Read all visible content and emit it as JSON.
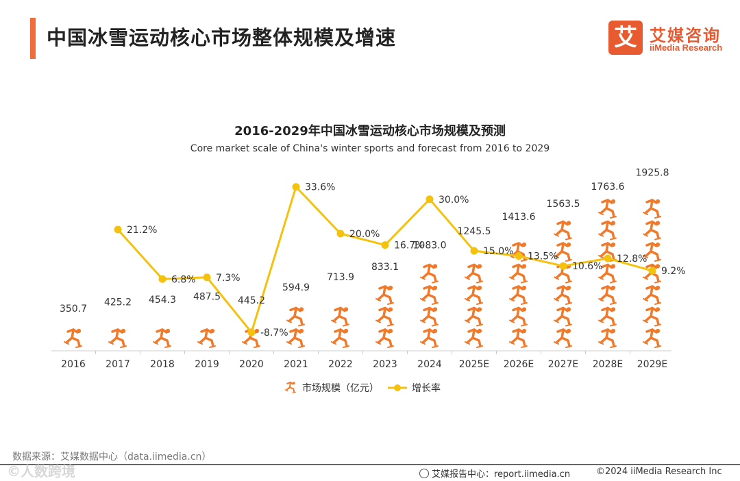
{
  "header": {
    "title": "中国冰雪运动核心市场整体规模及增速",
    "logo_mark": "艾",
    "logo_cn": "艾媒咨询",
    "logo_en": "iiMedia Research"
  },
  "footer": {
    "source": "数据来源：艾媒数据中心（data.iimedia.cn）",
    "report": "艾媒报告中心：report.iimedia.cn",
    "copyright": "©2024  iiMedia Research  Inc",
    "watermark": "©人数跨境"
  },
  "colors": {
    "bar_icon": "#f07a2a",
    "line": "#f4c20d",
    "accent": "#f26b3a"
  },
  "chart_data": {
    "type": "bar",
    "title": "2016-2029年中国冰雪运动核心市场规模及预测",
    "subtitle": "Core market scale of China's winter sports and forecast from 2016 to 2029",
    "categories": [
      "2016",
      "2017",
      "2018",
      "2019",
      "2020",
      "2021",
      "2022",
      "2023",
      "2024",
      "2025E",
      "2026E",
      "2027E",
      "2028E",
      "2029E"
    ],
    "series": [
      {
        "name": "市场规模（亿元）",
        "type": "pictorial-bar",
        "values": [
          350.7,
          425.2,
          454.3,
          487.5,
          445.2,
          594.9,
          713.9,
          833.1,
          1083.0,
          1245.5,
          1413.6,
          1563.5,
          1763.6,
          1925.8
        ],
        "labels": [
          "350.7",
          "425.2",
          "454.3",
          "487.5",
          "445.2",
          "594.9",
          "713.9",
          "833.1",
          "1083.0",
          "1245.5",
          "1413.6",
          "1563.5",
          "1763.6",
          "1925.8"
        ]
      },
      {
        "name": "增长率",
        "type": "line",
        "values": [
          null,
          21.2,
          6.8,
          7.3,
          -8.7,
          33.6,
          20.0,
          16.7,
          30.0,
          15.0,
          13.5,
          10.6,
          12.8,
          9.2
        ],
        "labels": [
          "",
          "21.2%",
          "6.8%",
          "7.3%",
          "-8.7%",
          "33.6%",
          "20.0%",
          "16.7%",
          "30.0%",
          "15.0%",
          "13.5%",
          "10.6%",
          "12.8%",
          "9.2%"
        ]
      }
    ],
    "legend_position": "bottom"
  }
}
